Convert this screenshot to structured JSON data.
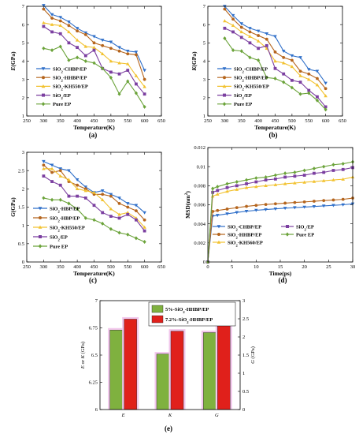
{
  "chart_data": [
    {
      "panel_label": "(a)",
      "type": "line",
      "xlabel": "Temperature(K)",
      "ylabel": "E(GPa)",
      "xlim": [
        250,
        650
      ],
      "ylim": [
        1,
        7
      ],
      "xticks": [
        250,
        300,
        350,
        400,
        450,
        500,
        550,
        600,
        650
      ],
      "yticks": [
        1,
        2,
        3,
        4,
        5,
        6,
        7
      ],
      "legend_position": "bottom-left",
      "x": [
        300,
        325,
        350,
        375,
        400,
        425,
        450,
        475,
        500,
        525,
        550,
        575,
        600
      ],
      "series": [
        {
          "name": "SiO2-CHBP/EP",
          "color": "#2f6fc9",
          "marker": "triangle-down",
          "values": [
            7.05,
            6.55,
            6.4,
            6.15,
            5.8,
            5.55,
            5.35,
            5.15,
            5.05,
            4.75,
            4.55,
            4.5,
            3.5
          ]
        },
        {
          "name": "SiO2-HHBP/EP",
          "color": "#b5651d",
          "marker": "circle",
          "values": [
            6.85,
            6.35,
            6.2,
            5.95,
            5.65,
            5.45,
            5.0,
            4.85,
            4.7,
            4.55,
            4.4,
            4.35,
            3.0
          ]
        },
        {
          "name": "SiO2-KH550/EP",
          "color": "#f2c230",
          "marker": "triangle-up",
          "values": [
            6.1,
            6.0,
            5.95,
            5.6,
            5.15,
            4.8,
            4.75,
            4.4,
            4.0,
            3.9,
            3.85,
            3.2,
            2.6
          ]
        },
        {
          "name": "SiO2/EP",
          "color": "#7b3fa0",
          "marker": "square",
          "values": [
            5.9,
            5.6,
            5.5,
            5.0,
            4.75,
            4.3,
            4.6,
            3.6,
            3.4,
            3.3,
            3.5,
            2.75,
            2.2
          ]
        },
        {
          "name": "Pure EP",
          "color": "#6ba33a",
          "marker": "diamond",
          "values": [
            4.7,
            4.6,
            4.8,
            4.05,
            4.2,
            4.0,
            3.9,
            3.6,
            3.1,
            2.2,
            2.9,
            2.25,
            1.5
          ]
        }
      ]
    },
    {
      "panel_label": "(b)",
      "type": "line",
      "xlabel": "Temperature(K)",
      "ylabel": "K(GPa)",
      "xlim": [
        250,
        650
      ],
      "ylim": [
        1,
        7
      ],
      "xticks": [
        250,
        300,
        350,
        400,
        450,
        500,
        550,
        600,
        650
      ],
      "yticks": [
        1,
        2,
        3,
        4,
        5,
        6,
        7
      ],
      "legend_position": "bottom-left",
      "x": [
        300,
        325,
        350,
        375,
        400,
        425,
        450,
        475,
        500,
        525,
        550,
        575,
        600
      ],
      "series": [
        {
          "name": "SiO2-CHBP/EP",
          "color": "#2f6fc9",
          "marker": "triangle-down",
          "values": [
            7.0,
            6.5,
            6.05,
            5.8,
            5.65,
            5.5,
            5.35,
            4.55,
            4.3,
            4.2,
            3.55,
            3.45,
            2.8
          ]
        },
        {
          "name": "SiO2-HHBP/EP",
          "color": "#b5651d",
          "marker": "circle",
          "values": [
            6.85,
            6.3,
            5.85,
            5.6,
            5.4,
            5.2,
            4.5,
            4.2,
            4.05,
            3.45,
            3.3,
            3.05,
            2.5
          ]
        },
        {
          "name": "SiO2-KH550/EP",
          "color": "#f2c230",
          "marker": "triangle-up",
          "values": [
            6.2,
            5.95,
            5.6,
            5.35,
            5.1,
            4.7,
            4.0,
            3.9,
            3.7,
            3.2,
            3.0,
            2.7,
            2.1
          ]
        },
        {
          "name": "SiO2/EP",
          "color": "#7b3fa0",
          "marker": "square",
          "values": [
            5.8,
            5.6,
            5.3,
            5.0,
            4.7,
            4.85,
            3.6,
            3.3,
            2.95,
            2.85,
            2.4,
            2.05,
            1.5
          ]
        },
        {
          "name": "Pure EP",
          "color": "#6ba33a",
          "marker": "diamond",
          "values": [
            5.25,
            4.6,
            4.55,
            4.2,
            4.05,
            3.1,
            3.05,
            2.85,
            2.55,
            2.2,
            2.25,
            1.85,
            1.35
          ]
        }
      ]
    },
    {
      "panel_label": "(c)",
      "type": "line",
      "xlabel": "Temperature(K)",
      "ylabel": "G(GPa)",
      "xlim": [
        250,
        650
      ],
      "ylim": [
        0,
        3
      ],
      "xticks": [
        250,
        300,
        350,
        400,
        450,
        500,
        550,
        600,
        650
      ],
      "yticks": [
        0,
        0.5,
        1,
        1.5,
        2,
        2.5,
        3
      ],
      "legend_position": "bottom-left",
      "x": [
        300,
        325,
        350,
        375,
        400,
        425,
        450,
        475,
        500,
        525,
        550,
        575,
        600
      ],
      "series": [
        {
          "name": "SiO2-HBP/EP",
          "color": "#2f6fc9",
          "marker": "triangle-down",
          "values": [
            2.75,
            2.65,
            2.55,
            2.5,
            2.25,
            2.05,
            1.9,
            1.95,
            1.85,
            1.75,
            1.6,
            1.55,
            1.35
          ]
        },
        {
          "name": "SiO2-HBP/EP",
          "color": "#b5651d",
          "marker": "circle",
          "values": [
            2.65,
            2.45,
            2.5,
            2.2,
            2.1,
            2.0,
            1.85,
            1.85,
            1.8,
            1.6,
            1.5,
            1.4,
            1.15
          ]
        },
        {
          "name": "SiO2-KH550/EP",
          "color": "#f2c230",
          "marker": "triangle-up",
          "values": [
            2.55,
            2.55,
            2.35,
            2.25,
            2.0,
            1.95,
            1.9,
            1.7,
            1.45,
            1.3,
            1.35,
            1.2,
            0.95
          ]
        },
        {
          "name": "SiO2/EP",
          "color": "#7b3fa0",
          "marker": "square",
          "values": [
            2.35,
            2.2,
            2.1,
            1.8,
            1.8,
            1.75,
            1.55,
            1.35,
            1.25,
            1.2,
            1.3,
            1.15,
            0.85
          ]
        },
        {
          "name": "Pure EP",
          "color": "#6ba33a",
          "marker": "diamond",
          "values": [
            1.75,
            1.7,
            1.7,
            1.6,
            1.45,
            1.2,
            1.15,
            1.05,
            0.9,
            0.8,
            0.75,
            0.65,
            0.55
          ]
        }
      ]
    },
    {
      "panel_label": "(d)",
      "type": "line",
      "xlabel": "Time(ps)",
      "ylabel": "MSD(nm²)",
      "xlim": [
        0,
        30
      ],
      "ylim": [
        0,
        0.012
      ],
      "xticks": [
        0,
        5,
        10,
        15,
        20,
        25,
        30
      ],
      "yticks": [
        0,
        0.002,
        0.004,
        0.006,
        0.008,
        0.01,
        0.012
      ],
      "ytick_labels": [
        "0",
        "0.002",
        "0.004",
        "0.006",
        "0.008",
        "0.01",
        "0.012"
      ],
      "legend_position": "bottom-center",
      "series": [
        {
          "name": "SiO2-CHBP/EP",
          "color": "#2f6fc9",
          "marker": "triangle-down",
          "x": [
            0,
            1,
            2,
            4,
            6,
            8,
            10,
            12,
            14,
            16,
            18,
            20,
            22,
            24,
            26,
            28,
            30
          ],
          "values": [
            0,
            0.0048,
            0.0049,
            0.00505,
            0.0052,
            0.00532,
            0.00542,
            0.0055,
            0.00557,
            0.00564,
            0.0057,
            0.00576,
            0.00582,
            0.00588,
            0.00594,
            0.006,
            0.0061
          ]
        },
        {
          "name": "SiO2-HHBP/EP",
          "color": "#b5651d",
          "marker": "circle",
          "x": [
            0,
            1,
            2,
            4,
            6,
            8,
            10,
            12,
            14,
            16,
            18,
            20,
            22,
            24,
            26,
            28,
            30
          ],
          "values": [
            0,
            0.0053,
            0.0054,
            0.00555,
            0.0057,
            0.00583,
            0.00594,
            0.00603,
            0.0061,
            0.00617,
            0.00624,
            0.0063,
            0.00637,
            0.00644,
            0.0065,
            0.00657,
            0.0067
          ]
        },
        {
          "name": "SiO2-KH560/EP",
          "color": "#f2c230",
          "marker": "triangle-up",
          "x": [
            0,
            1,
            2,
            4,
            6,
            8,
            10,
            12,
            14,
            16,
            18,
            20,
            22,
            24,
            26,
            28,
            30
          ],
          "values": [
            0,
            0.0069,
            0.0071,
            0.0074,
            0.0076,
            0.0078,
            0.0079,
            0.008,
            0.0081,
            0.0082,
            0.00828,
            0.00836,
            0.00844,
            0.00852,
            0.0086,
            0.00868,
            0.0089
          ]
        },
        {
          "name": "SiO2/EP",
          "color": "#7b3fa0",
          "marker": "square",
          "x": [
            0,
            1,
            2,
            4,
            6,
            8,
            10,
            12,
            14,
            16,
            18,
            20,
            22,
            24,
            26,
            28,
            30
          ],
          "values": [
            0,
            0.0073,
            0.0075,
            0.0078,
            0.008,
            0.0082,
            0.0084,
            0.0086,
            0.0087,
            0.0089,
            0.009,
            0.0091,
            0.0093,
            0.0094,
            0.0096,
            0.0097,
            0.0099
          ]
        },
        {
          "name": "Pure EP",
          "color": "#6ba33a",
          "marker": "diamond",
          "x": [
            0,
            1,
            2,
            4,
            6,
            8,
            10,
            12,
            14,
            16,
            18,
            20,
            22,
            24,
            26,
            28,
            30
          ],
          "values": [
            0,
            0.0077,
            0.0079,
            0.0082,
            0.0084,
            0.0086,
            0.0088,
            0.0089,
            0.0091,
            0.0093,
            0.0094,
            0.0096,
            0.0098,
            0.01,
            0.0102,
            0.0103,
            0.0105
          ]
        }
      ]
    },
    {
      "panel_label": "(e)",
      "type": "bar",
      "categories": [
        "E",
        "K",
        "G"
      ],
      "ylabel": "E or K (GPa)",
      "ylabel_right": "G (GPa)",
      "ylim": [
        6,
        7
      ],
      "ylim_right": [
        0,
        3
      ],
      "yticks": [
        6,
        6.25,
        6.5,
        6.75,
        7
      ],
      "yticks_right": [
        0,
        0.5,
        1,
        1.5,
        2,
        2.5,
        3
      ],
      "legend_position": "top-center",
      "series": [
        {
          "name": "5%-SiO2-HHBP/EP",
          "color": "#7fb13f",
          "values": [
            6.73,
            6.51,
            2.12
          ]
        },
        {
          "name": "7.2%-SiO2-HHBP/EP",
          "color": "#e0201b",
          "values": [
            6.83,
            6.72,
            2.43
          ]
        }
      ]
    }
  ]
}
